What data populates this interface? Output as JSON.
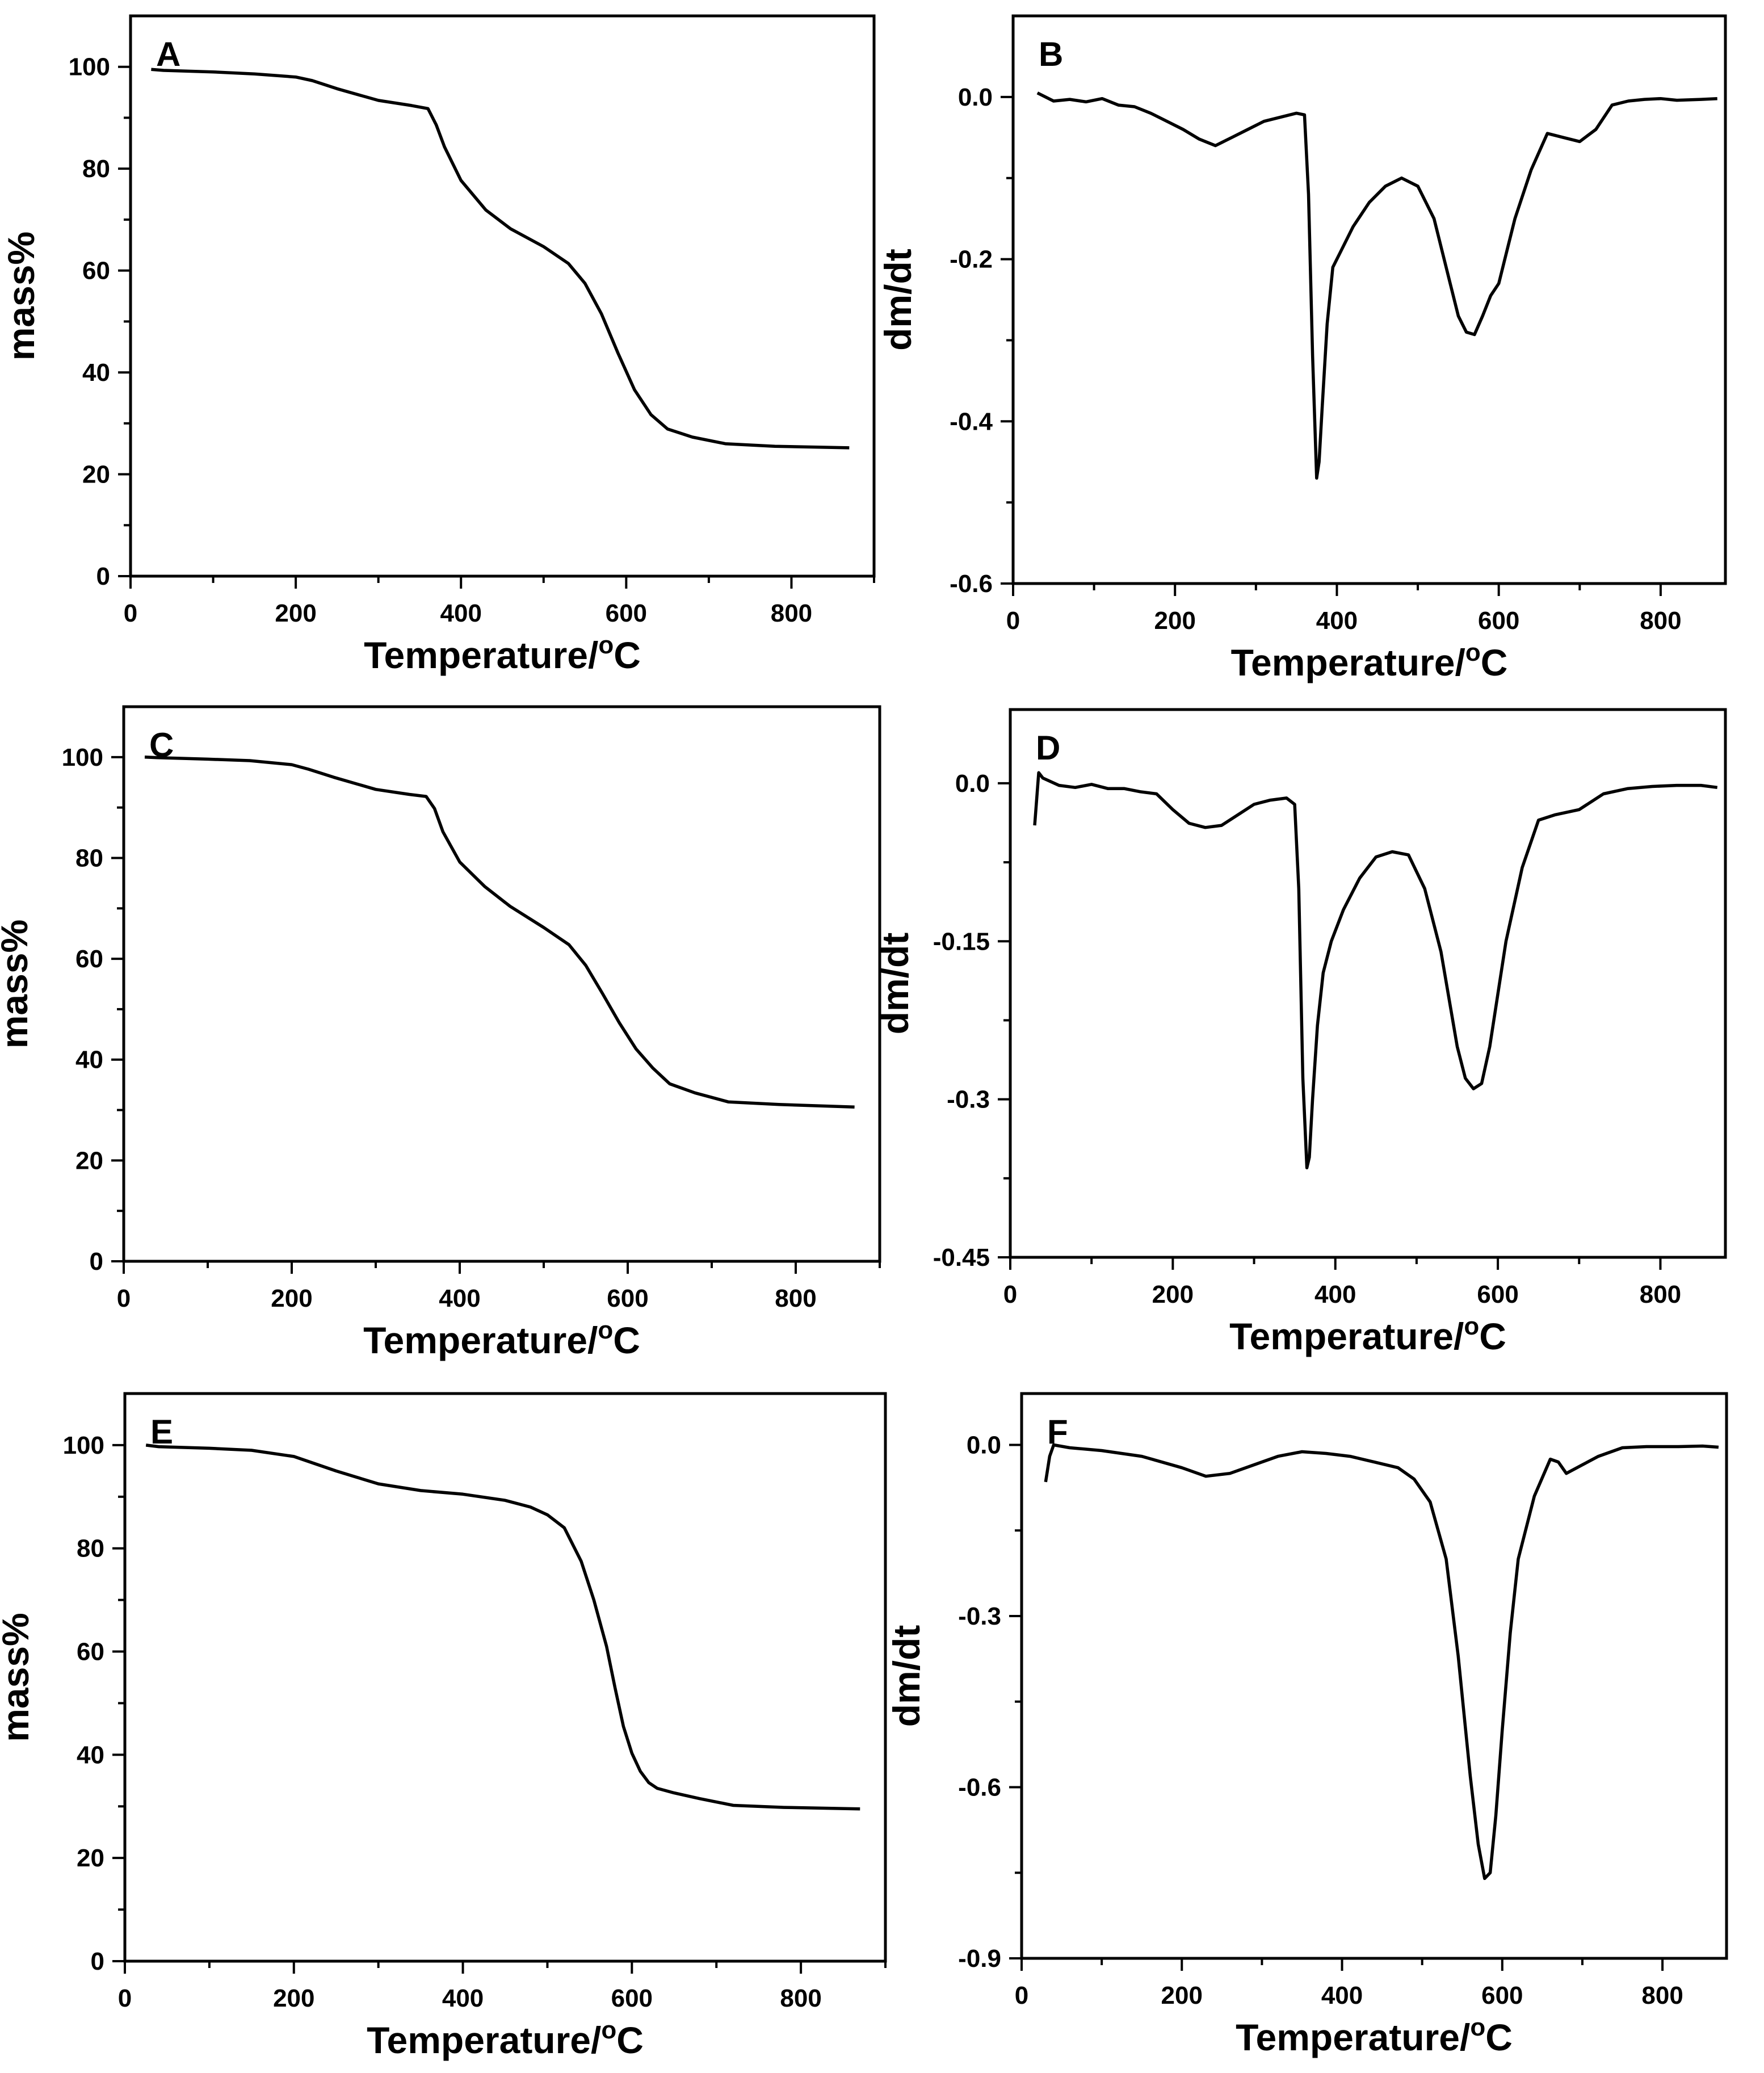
{
  "figure": {
    "description_labels": [
      "A",
      "B",
      "C",
      "D",
      "E",
      "F"
    ]
  },
  "chart_data": [
    {
      "panel": "A",
      "type": "line",
      "xlabel": "Temperature/°C",
      "ylabel": "mass%",
      "xlim": [
        0,
        900
      ],
      "ylim": [
        0,
        110
      ],
      "xticks": [
        0,
        200,
        400,
        600,
        800
      ],
      "yticks": [
        0,
        20,
        40,
        60,
        80,
        100
      ],
      "x": [
        25,
        40,
        100,
        150,
        200,
        220,
        250,
        300,
        340,
        360,
        370,
        380,
        400,
        430,
        460,
        500,
        530,
        550,
        570,
        590,
        610,
        630,
        650,
        680,
        720,
        780,
        870
      ],
      "y": [
        99.5,
        99.3,
        99,
        98.6,
        98,
        97.3,
        95.7,
        93.4,
        92.4,
        91.8,
        88.6,
        84.3,
        77.7,
        71.9,
        68.2,
        64.7,
        61.4,
        57.5,
        51.5,
        43.8,
        36.6,
        31.7,
        28.9,
        27.3,
        26,
        25.5,
        25.2
      ]
    },
    {
      "panel": "B",
      "type": "line",
      "xlabel": "Temperature/°C",
      "ylabel": "dm/dt",
      "xlim": [
        0,
        880
      ],
      "ylim": [
        -0.6,
        0.1
      ],
      "xticks": [
        0,
        200,
        400,
        600,
        800
      ],
      "yticks": [
        0.0,
        -0.2,
        -0.4,
        -0.6
      ],
      "ytick_labels": [
        "0.0",
        "-0.2",
        "-0.4",
        "-0.6"
      ],
      "x": [
        30,
        50,
        70,
        90,
        110,
        130,
        150,
        170,
        190,
        210,
        230,
        250,
        270,
        290,
        310,
        330,
        350,
        360,
        365,
        370,
        375,
        378,
        382,
        388,
        395,
        405,
        420,
        440,
        460,
        480,
        500,
        520,
        540,
        550,
        560,
        570,
        580,
        590,
        600,
        610,
        620,
        640,
        660,
        680,
        700,
        720,
        740,
        760,
        780,
        800,
        820,
        850,
        870
      ],
      "y": [
        0.005,
        -0.005,
        -0.003,
        -0.006,
        -0.002,
        -0.01,
        -0.012,
        -0.02,
        -0.03,
        -0.04,
        -0.052,
        -0.06,
        -0.05,
        -0.04,
        -0.03,
        -0.025,
        -0.02,
        -0.022,
        -0.12,
        -0.32,
        -0.47,
        -0.45,
        -0.38,
        -0.28,
        -0.21,
        -0.19,
        -0.16,
        -0.13,
        -0.11,
        -0.1,
        -0.11,
        -0.15,
        -0.23,
        -0.27,
        -0.29,
        -0.293,
        -0.27,
        -0.245,
        -0.23,
        -0.19,
        -0.15,
        -0.09,
        -0.045,
        -0.05,
        -0.055,
        -0.04,
        -0.01,
        -0.005,
        -0.003,
        -0.002,
        -0.004,
        -0.003,
        -0.002
      ]
    },
    {
      "panel": "C",
      "type": "line",
      "xlabel": "Temperature/°C",
      "ylabel": "mass%",
      "xlim": [
        0,
        900
      ],
      "ylim": [
        0,
        110
      ],
      "xticks": [
        0,
        200,
        400,
        600,
        800
      ],
      "yticks": [
        0,
        20,
        40,
        60,
        80,
        100
      ],
      "x": [
        25,
        40,
        100,
        150,
        200,
        220,
        250,
        300,
        340,
        360,
        370,
        380,
        400,
        430,
        460,
        500,
        530,
        550,
        570,
        590,
        610,
        630,
        650,
        680,
        720,
        780,
        870
      ],
      "y": [
        100,
        99.9,
        99.6,
        99.3,
        98.5,
        97.6,
        96,
        93.6,
        92.6,
        92.2,
        89.8,
        85.2,
        79.2,
        74.3,
        70.4,
        66.2,
        62.8,
        58.7,
        53.1,
        47.3,
        42.1,
        38.3,
        35.2,
        33.4,
        31.6,
        31.1,
        30.6
      ]
    },
    {
      "panel": "D",
      "type": "line",
      "xlabel": "Temperature/°C",
      "ylabel": "dm/dt",
      "xlim": [
        0,
        880
      ],
      "ylim": [
        -0.45,
        0.07
      ],
      "xticks": [
        0,
        200,
        400,
        600,
        800
      ],
      "yticks": [
        0.0,
        -0.15,
        -0.3,
        -0.45
      ],
      "ytick_labels": [
        "0.0",
        "-0.15",
        "-0.3",
        "-0.45"
      ],
      "x": [
        30,
        35,
        40,
        60,
        80,
        100,
        120,
        140,
        160,
        180,
        200,
        220,
        240,
        260,
        280,
        300,
        320,
        340,
        350,
        355,
        360,
        365,
        368,
        372,
        378,
        385,
        395,
        410,
        430,
        450,
        470,
        490,
        510,
        530,
        550,
        560,
        570,
        580,
        590,
        600,
        610,
        630,
        650,
        670,
        700,
        730,
        760,
        790,
        820,
        850,
        870
      ],
      "y": [
        -0.04,
        0.01,
        0.005,
        -0.002,
        -0.004,
        -0.001,
        -0.005,
        -0.005,
        -0.008,
        -0.01,
        -0.025,
        -0.038,
        -0.042,
        -0.04,
        -0.03,
        -0.02,
        -0.016,
        -0.014,
        -0.02,
        -0.1,
        -0.28,
        -0.365,
        -0.355,
        -0.3,
        -0.23,
        -0.18,
        -0.15,
        -0.12,
        -0.09,
        -0.07,
        -0.065,
        -0.068,
        -0.1,
        -0.16,
        -0.25,
        -0.28,
        -0.29,
        -0.285,
        -0.25,
        -0.2,
        -0.15,
        -0.08,
        -0.035,
        -0.03,
        -0.025,
        -0.01,
        -0.005,
        -0.003,
        -0.002,
        -0.002,
        -0.004
      ]
    },
    {
      "panel": "E",
      "type": "line",
      "xlabel": "Temperature/°C",
      "ylabel": "mass%",
      "xlim": [
        0,
        900
      ],
      "ylim": [
        0,
        110
      ],
      "xticks": [
        0,
        200,
        400,
        600,
        800
      ],
      "yticks": [
        0,
        20,
        40,
        60,
        80,
        100
      ],
      "x": [
        25,
        40,
        100,
        150,
        200,
        250,
        300,
        350,
        400,
        450,
        480,
        500,
        520,
        540,
        555,
        570,
        580,
        590,
        600,
        610,
        620,
        630,
        650,
        680,
        720,
        780,
        870
      ],
      "y": [
        100,
        99.7,
        99.4,
        99,
        97.8,
        95,
        92.5,
        91.2,
        90.5,
        89.3,
        88,
        86.5,
        84,
        77.5,
        70,
        61,
        53,
        45.5,
        40.3,
        36.8,
        34.6,
        33.5,
        32.6,
        31.5,
        30.2,
        29.8,
        29.5
      ]
    },
    {
      "panel": "F",
      "type": "line",
      "xlabel": "Temperature/°C",
      "ylabel": "dm/dt",
      "xlim": [
        0,
        880
      ],
      "ylim": [
        -0.9,
        0.09
      ],
      "xticks": [
        0,
        200,
        400,
        600,
        800
      ],
      "yticks": [
        0.0,
        -0.3,
        -0.6,
        -0.9
      ],
      "ytick_labels": [
        "0.0",
        "-0.3",
        "-0.6",
        "-0.9"
      ],
      "x": [
        30,
        35,
        40,
        60,
        100,
        150,
        200,
        230,
        260,
        290,
        320,
        350,
        380,
        410,
        440,
        470,
        490,
        510,
        530,
        545,
        560,
        570,
        578,
        585,
        592,
        600,
        610,
        620,
        640,
        660,
        670,
        680,
        700,
        720,
        750,
        780,
        820,
        850,
        870
      ],
      "y": [
        -0.065,
        -0.02,
        0.0,
        -0.005,
        -0.01,
        -0.02,
        -0.04,
        -0.055,
        -0.05,
        -0.035,
        -0.02,
        -0.012,
        -0.015,
        -0.02,
        -0.03,
        -0.04,
        -0.06,
        -0.1,
        -0.2,
        -0.37,
        -0.58,
        -0.7,
        -0.76,
        -0.75,
        -0.65,
        -0.5,
        -0.33,
        -0.2,
        -0.09,
        -0.025,
        -0.03,
        -0.05,
        -0.035,
        -0.02,
        -0.005,
        -0.003,
        -0.003,
        -0.002,
        -0.004
      ]
    }
  ]
}
